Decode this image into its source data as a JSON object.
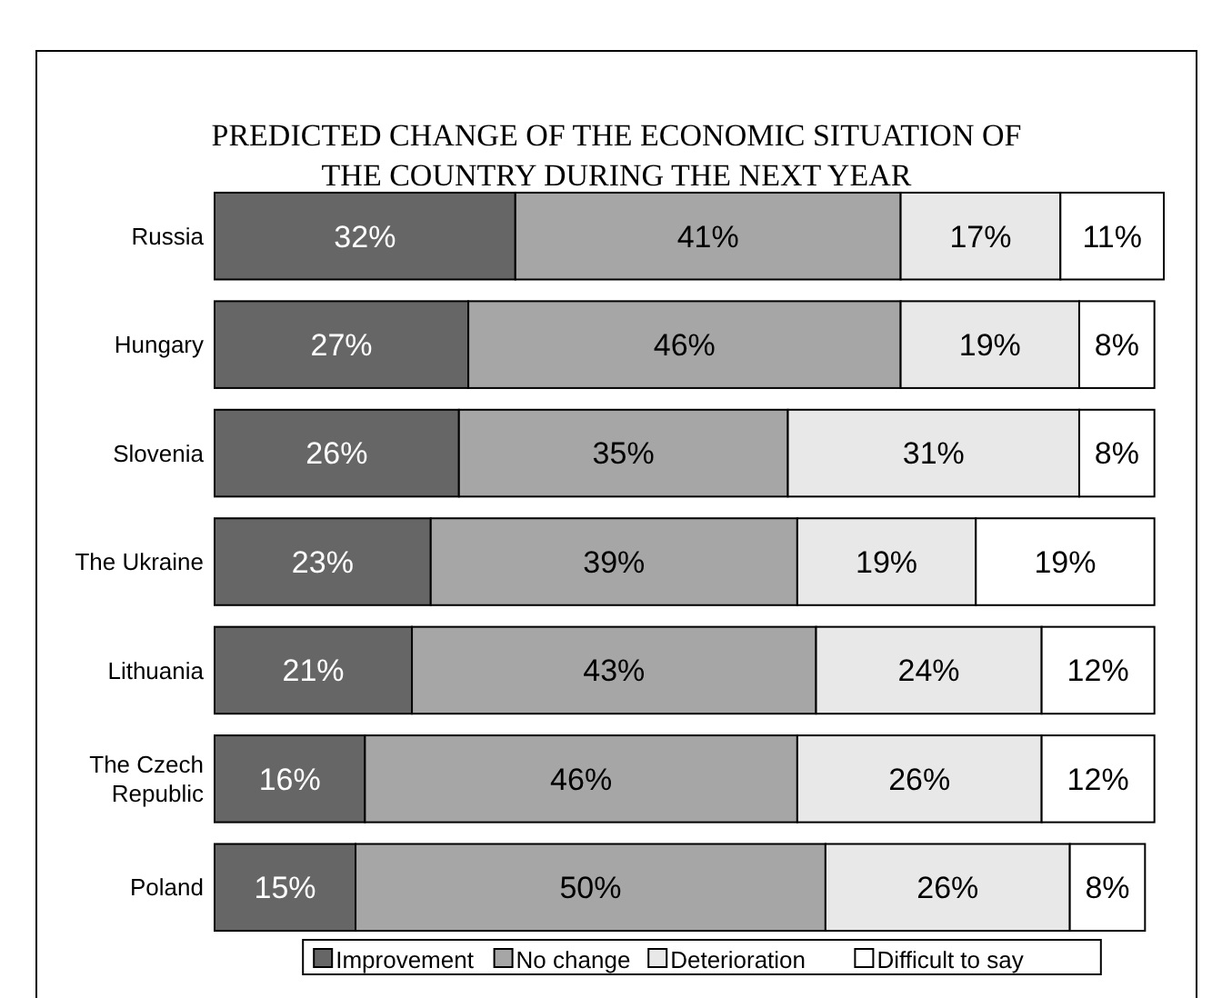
{
  "chart_data": {
    "type": "bar",
    "orientation": "horizontal",
    "stacked": true,
    "title": "PREDICTED CHANGE OF THE ECONOMIC SITUATION OF THE COUNTRY DURING THE NEXT YEAR",
    "categories": [
      "Russia",
      "Hungary",
      "Slovenia",
      "The Ukraine",
      "Lithuania",
      "The Czech Republic",
      "Poland"
    ],
    "xlim": [
      0,
      101
    ],
    "tick_labels": "y",
    "legend": "bottom",
    "series": [
      {
        "name": "Improvement",
        "color": "#666666",
        "values": [
          32,
          27,
          26,
          23,
          21,
          16,
          15
        ],
        "value_labels": [
          "32%",
          "27%",
          "26%",
          "23%",
          "21%",
          "16%",
          "15%"
        ]
      },
      {
        "name": "No change",
        "color": "#a6a6a6",
        "values": [
          41,
          46,
          35,
          39,
          43,
          46,
          50
        ],
        "value_labels": [
          "41%",
          "46%",
          "35%",
          "39%",
          "43%",
          "46%",
          "50%"
        ]
      },
      {
        "name": "Deterioration",
        "color": "#e8e8e8",
        "values": [
          17,
          19,
          31,
          19,
          24,
          26,
          26
        ],
        "value_labels": [
          "17%",
          "19%",
          "31%",
          "19%",
          "24%",
          "26%",
          "26%"
        ]
      },
      {
        "name": "Difficult to say",
        "color": "#ffffff",
        "values": [
          11,
          8,
          8,
          19,
          12,
          12,
          8
        ],
        "value_labels": [
          "11%",
          "8%",
          "8%",
          "19%",
          "12%",
          "12%",
          "8%"
        ]
      }
    ]
  }
}
